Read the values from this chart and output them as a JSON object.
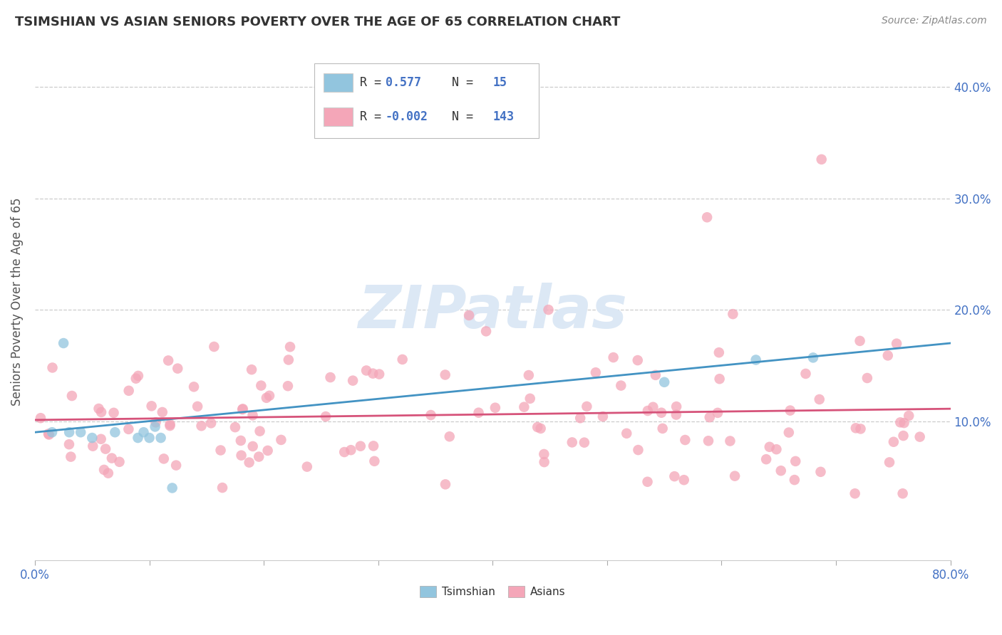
{
  "title": "TSIMSHIAN VS ASIAN SENIORS POVERTY OVER THE AGE OF 65 CORRELATION CHART",
  "source": "Source: ZipAtlas.com",
  "ylabel": "Seniors Poverty Over the Age of 65",
  "tsimshian_color": "#92c5de",
  "asian_color": "#f4a6b8",
  "tsimshian_line_color": "#4393c3",
  "asian_line_color": "#d6537a",
  "background_color": "#ffffff",
  "watermark_color": "#dce8f5",
  "xlim": [
    0.0,
    0.8
  ],
  "ylim": [
    -0.025,
    0.44
  ],
  "ytick_vals": [
    0.1,
    0.2,
    0.3,
    0.4
  ],
  "ytick_labels": [
    "10.0%",
    "20.0%",
    "30.0%",
    "40.0%"
  ],
  "xtick_vals": [
    0.0,
    0.1,
    0.2,
    0.3,
    0.4,
    0.5,
    0.6,
    0.7,
    0.8
  ],
  "tsim_r": "0.577",
  "tsim_n": "15",
  "asian_r": "-0.002",
  "asian_n": "143",
  "label_color": "#4472c4",
  "tick_label_color": "#4472c4",
  "title_color": "#333333",
  "source_color": "#888888",
  "ylabel_color": "#555555"
}
